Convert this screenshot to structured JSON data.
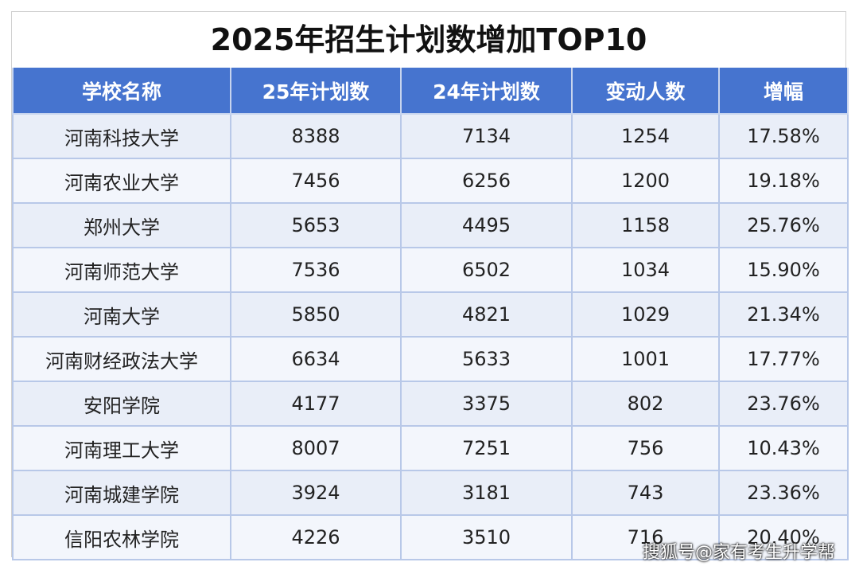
{
  "title": "2025年招生计划数增加TOP10",
  "table": {
    "header": [
      "学校名称",
      "25年计划数",
      "24年计划数",
      "变动人数",
      "增幅"
    ],
    "rows": [
      [
        "河南科技大学",
        "8388",
        "7134",
        "1254",
        "17.58%"
      ],
      [
        "河南农业大学",
        "7456",
        "6256",
        "1200",
        "19.18%"
      ],
      [
        "郑州大学",
        "5653",
        "4495",
        "1158",
        "25.76%"
      ],
      [
        "河南师范大学",
        "7536",
        "6502",
        "1034",
        "15.90%"
      ],
      [
        "河南大学",
        "5850",
        "4821",
        "1029",
        "21.34%"
      ],
      [
        "河南财经政法大学",
        "6634",
        "5633",
        "1001",
        "17.77%"
      ],
      [
        "安阳学院",
        "4177",
        "3375",
        "802",
        "23.76%"
      ],
      [
        "河南理工大学",
        "8007",
        "7251",
        "756",
        "10.43%"
      ],
      [
        "河南城建学院",
        "3924",
        "3181",
        "743",
        "23.36%"
      ],
      [
        "信阳农林学院",
        "4226",
        "3510",
        "716",
        "20.40%"
      ]
    ]
  },
  "watermark": "搜狐号@家有考生升学帮"
}
